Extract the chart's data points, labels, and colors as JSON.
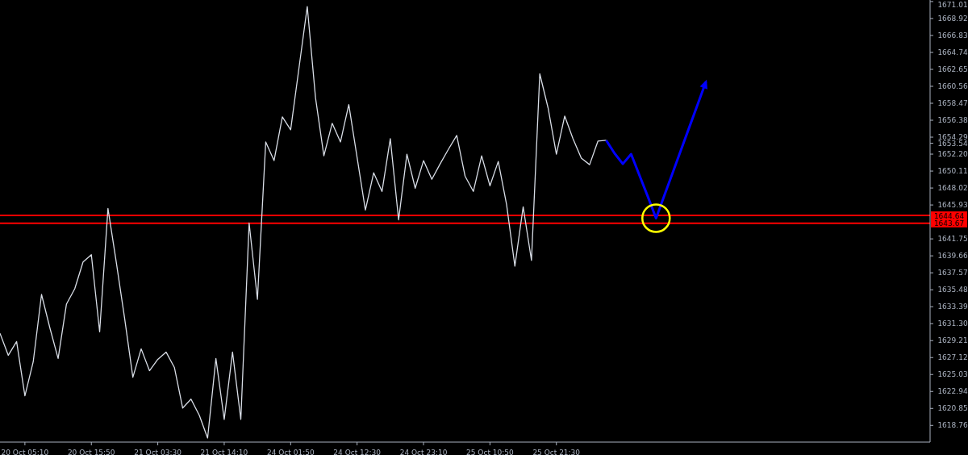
{
  "chart_data": {
    "type": "line",
    "ylim": [
      1616.7,
      1671.2
    ],
    "categories": [
      null,
      null,
      null,
      "20 Oct 05:10",
      null,
      null,
      null,
      null,
      null,
      null,
      null,
      "20 Oct 15:50",
      null,
      null,
      null,
      null,
      null,
      null,
      null,
      "21 Oct 03:30",
      null,
      null,
      null,
      null,
      null,
      null,
      null,
      "21 Oct 14:10",
      null,
      null,
      null,
      null,
      null,
      null,
      null,
      "24 Oct 01:50",
      null,
      null,
      null,
      null,
      null,
      null,
      null,
      "24 Oct 12:30",
      null,
      null,
      null,
      null,
      null,
      null,
      null,
      "24 Oct 23:10",
      null,
      null,
      null,
      null,
      null,
      null,
      null,
      "25 Oct 10:50",
      null,
      null,
      null,
      null,
      null,
      null,
      null,
      "25 Oct 21:30",
      null,
      null,
      null,
      null,
      null,
      null,
      null,
      null,
      null,
      null,
      null,
      null,
      null,
      null,
      null,
      null,
      null,
      null,
      null,
      null,
      null,
      null,
      null,
      null,
      null,
      null,
      null,
      null,
      null,
      null,
      null,
      null,
      null,
      null,
      null,
      null,
      null,
      null,
      null,
      null,
      null,
      null,
      null,
      null,
      null
    ],
    "yticks": [
      1671.01,
      1668.92,
      1666.83,
      1664.74,
      1662.65,
      1660.56,
      1658.47,
      1656.38,
      1654.29,
      {
        "value": 1652.2,
        "label": "1652.20"
      },
      1650.11,
      1648.02,
      1645.93,
      1641.75,
      1639.66,
      1637.57,
      1635.48,
      1633.39,
      {
        "value": 1631.3,
        "label": "1631.30"
      },
      1629.21,
      1627.12,
      1625.03,
      1622.94,
      1620.85,
      1618.76,
      {
        "value": 1653.54,
        "label": "1653.54"
      }
    ],
    "grid": false,
    "marker": "none",
    "line_style": "solid",
    "series": [
      {
        "color": "#d8dde6",
        "values": [
          1630.1,
          1627.4,
          1629.1,
          1622.4,
          1626.6,
          1634.9,
          1630.8,
          1627.0,
          1633.7,
          1635.6,
          1638.9,
          1639.8,
          1630.3,
          1645.5,
          1638.9,
          1632.0,
          1624.7,
          1628.2,
          1625.5,
          1626.9,
          1627.8,
          1625.9,
          1620.9,
          1622.0,
          1620.0,
          1617.2,
          1627.0,
          1619.5,
          1627.8,
          1619.5,
          1643.7,
          1634.3,
          1653.7,
          1651.4,
          1656.8,
          1655.2,
          1662.8,
          1670.4,
          1659.1,
          1652.0,
          1656.0,
          1653.7,
          1658.3,
          1651.8,
          1645.3,
          1649.9,
          1647.6,
          1654.1,
          1644.1,
          1652.2,
          1648.0,
          1651.4,
          1649.1,
          1651.0,
          1652.8,
          1654.5,
          1649.5,
          1647.6,
          1652.0,
          1648.3,
          1651.3,
          1646.0,
          1638.4,
          1645.7,
          1639.1,
          1662.1,
          1657.9,
          1652.2,
          1656.9,
          1654.1,
          1651.7,
          1650.9,
          1653.8,
          1653.9,
          null,
          null,
          null,
          null,
          null,
          null,
          null,
          null,
          null,
          null,
          null,
          null,
          null,
          null,
          null,
          null,
          null,
          null,
          null,
          null,
          null,
          null,
          null,
          null,
          null,
          null,
          null,
          null,
          null,
          null,
          null,
          null,
          null,
          null,
          null,
          null,
          null,
          null,
          null
        ]
      },
      {
        "color": "#0000ff",
        "values": [
          null,
          null,
          null,
          null,
          null,
          null,
          null,
          null,
          null,
          null,
          null,
          null,
          null,
          null,
          null,
          null,
          null,
          null,
          null,
          null,
          null,
          null,
          null,
          null,
          null,
          null,
          null,
          null,
          null,
          null,
          null,
          null,
          null,
          null,
          null,
          null,
          null,
          null,
          null,
          null,
          null,
          null,
          null,
          null,
          null,
          null,
          null,
          null,
          null,
          null,
          null,
          null,
          null,
          null,
          null,
          null,
          null,
          null,
          null,
          null,
          null,
          null,
          null,
          null,
          null,
          null,
          null,
          null,
          null,
          null,
          null,
          null,
          null,
          1653.9,
          1652.3,
          1651.0,
          1652.2,
          1649.6,
          1647.0,
          1644.3,
          1647.1,
          1649.9,
          1652.7,
          1655.5,
          1658.3,
          1661.1,
          null,
          null,
          null,
          null,
          null,
          null,
          null,
          null,
          null,
          null,
          null,
          null,
          null,
          null,
          null,
          null,
          null,
          null,
          null,
          null,
          null,
          null,
          null,
          null,
          null,
          null,
          null
        ]
      }
    ],
    "ref_lines": [
      {
        "axis": "y",
        "value": 1644.64,
        "label": "1644.64",
        "color": "#ff0000"
      },
      {
        "axis": "y",
        "value": 1643.67,
        "label": "1643.67",
        "color": "#ff0000"
      }
    ]
  }
}
